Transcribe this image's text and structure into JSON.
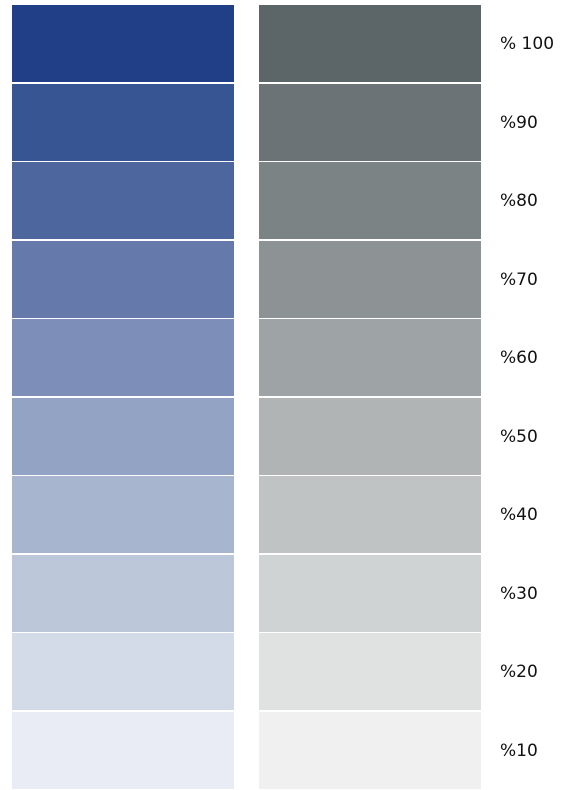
{
  "blue_swatches": [
    "#213f87",
    "#375592",
    "#4d669e",
    "#6679ab",
    "#7d8eb8",
    "#93a3c3",
    "#a7b5cf",
    "#bcc7da",
    "#d4dbe8",
    "#e9ecf4"
  ],
  "gray_swatches": [
    "#5c6568",
    "#6b7376",
    "#7b8385",
    "#8d9394",
    "#9ea3a5",
    "#b0b4b5",
    "#c0c3c4",
    "#d0d3d4",
    "#e0e2e2",
    "#eff0ef"
  ],
  "labels": [
    "% 100",
    "%90",
    "%80",
    "%70",
    "%60",
    "%50",
    "%40",
    "%30",
    "%20",
    "%10"
  ]
}
